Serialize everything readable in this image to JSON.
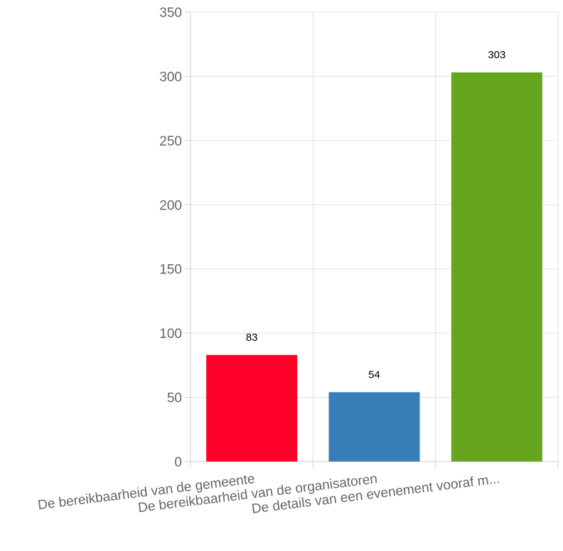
{
  "chart_data": {
    "type": "bar",
    "categories": [
      "De bereikbaarheid van de gemeente",
      "De bereikbaarheid van de organisatoren",
      "De details van een evenement vooraf m..."
    ],
    "values": [
      83,
      54,
      303
    ],
    "data_labels": [
      "83",
      "54",
      "303"
    ],
    "colors": [
      "#ff0029",
      "#377eb8",
      "#66a61e"
    ],
    "title": "",
    "xlabel": "",
    "ylabel": "",
    "ylim": [
      0,
      350
    ],
    "yticks": [
      0,
      50,
      100,
      150,
      200,
      250,
      300,
      350
    ],
    "ytick_labels": [
      "0",
      "50",
      "100",
      "150",
      "200",
      "250",
      "300",
      "350"
    ],
    "grid": true,
    "legend": "none",
    "xtick_rotation": "slanted"
  }
}
